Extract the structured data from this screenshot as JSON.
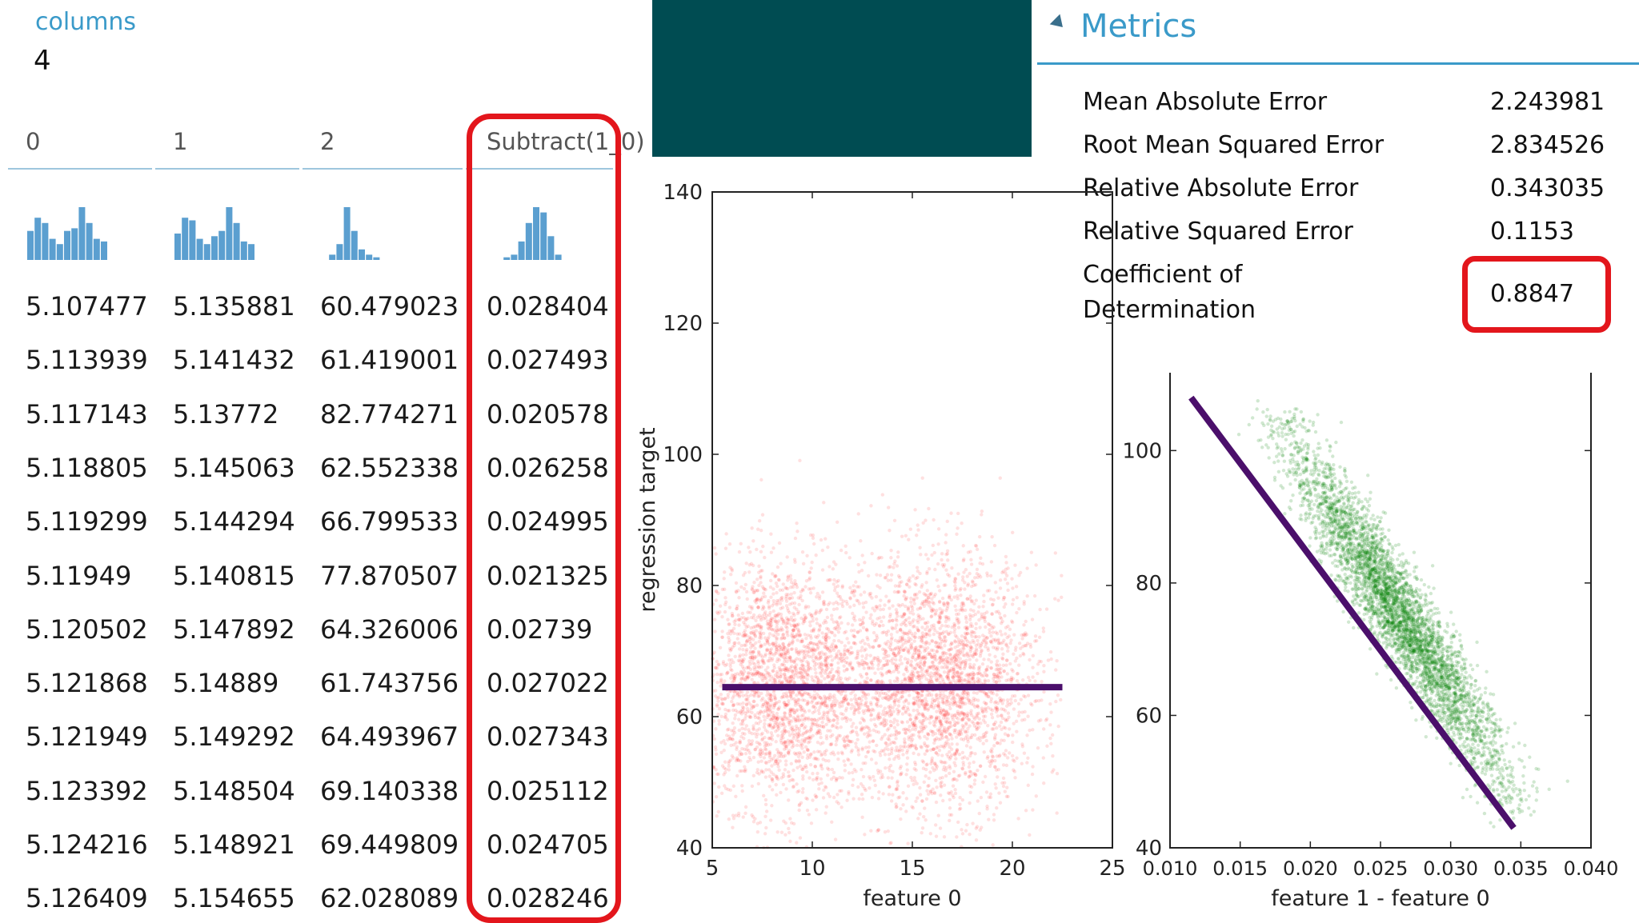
{
  "table": {
    "columns_label": "columns",
    "columns_count": "4",
    "headers": [
      "0",
      "1",
      "2",
      "Subtract(1_0)"
    ],
    "rows": [
      [
        "5.107477",
        "5.135881",
        "60.479023",
        "0.028404"
      ],
      [
        "5.113939",
        "5.141432",
        "61.419001",
        "0.027493"
      ],
      [
        "5.117143",
        "5.13772",
        "82.774271",
        "0.020578"
      ],
      [
        "5.118805",
        "5.145063",
        "62.552338",
        "0.026258"
      ],
      [
        "5.119299",
        "5.144294",
        "66.799533",
        "0.024995"
      ],
      [
        "5.11949",
        "5.140815",
        "77.870507",
        "0.021325"
      ],
      [
        "5.120502",
        "5.147892",
        "64.326006",
        "0.02739"
      ],
      [
        "5.121868",
        "5.14889",
        "61.743756",
        "0.027022"
      ],
      [
        "5.121949",
        "5.149292",
        "64.493967",
        "0.027343"
      ],
      [
        "5.123392",
        "5.148504",
        "69.140338",
        "0.025112"
      ],
      [
        "5.124216",
        "5.148921",
        "69.449809",
        "0.024705"
      ],
      [
        "5.126409",
        "5.154655",
        "62.028089",
        "0.028246"
      ]
    ],
    "highlight_color": "#e3161c",
    "histogram_color": "#5b9fd0"
  },
  "metrics": {
    "title": "Metrics",
    "items": [
      {
        "label": "Mean Absolute Error",
        "value": "2.243981"
      },
      {
        "label": "Root Mean Squared Error",
        "value": "2.834526"
      },
      {
        "label": "Relative Absolute Error",
        "value": "0.343035"
      },
      {
        "label": "Relative Squared Error",
        "value": "0.1153"
      },
      {
        "label_line1": "Coefficient of",
        "label_line2": "Determination",
        "value": "0.8847"
      }
    ]
  },
  "chart_data": [
    {
      "type": "scatter",
      "xlabel": "feature 0",
      "ylabel": "regression target",
      "xlim": [
        5,
        25
      ],
      "ylim": [
        40,
        140
      ],
      "xticks": [
        5,
        10,
        15,
        20,
        25
      ],
      "yticks": [
        40,
        60,
        80,
        100,
        120,
        140
      ],
      "point_color": "#ff0000",
      "clusters": [
        {
          "x_center": 8.5,
          "y_center": 65
        },
        {
          "x_center": 16.5,
          "y_center": 65
        }
      ],
      "fit_line": {
        "x": [
          5.5,
          22.5
        ],
        "y": [
          64.5,
          64.5
        ],
        "color": "#4b0f6b"
      }
    },
    {
      "type": "scatter",
      "xlabel": "feature 1 - feature 0",
      "ylabel": "",
      "xlim": [
        0.01,
        0.04
      ],
      "ylim": [
        40,
        112
      ],
      "xticks": [
        "0.010",
        "0.015",
        "0.020",
        "0.025",
        "0.030",
        "0.035",
        "0.040"
      ],
      "yticks": [
        40,
        60,
        80,
        100
      ],
      "point_color": "#008000",
      "band": {
        "x_start": 0.018,
        "y_start": 104,
        "x_end": 0.0345,
        "y_end": 47
      },
      "fit_line": {
        "x": [
          0.0115,
          0.0345
        ],
        "y": [
          108,
          43
        ],
        "color": "#4b0f6b"
      }
    }
  ]
}
